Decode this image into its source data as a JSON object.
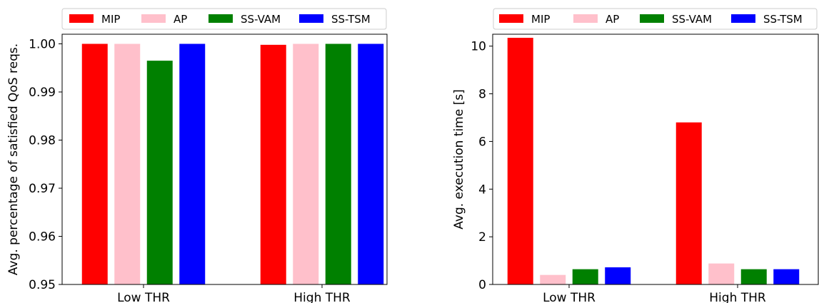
{
  "chart_data": [
    {
      "type": "bar",
      "categories": [
        "Low THR",
        "High THR"
      ],
      "series": [
        {
          "name": "MIP",
          "color": "#ff0000",
          "values": [
            1.0,
            0.9998
          ]
        },
        {
          "name": "AP",
          "color": "#ffc0cb",
          "values": [
            1.0,
            1.0
          ]
        },
        {
          "name": "SS-VAM",
          "color": "#008000",
          "values": [
            0.9965,
            1.0
          ]
        },
        {
          "name": "SS-TSM",
          "color": "#0000ff",
          "values": [
            1.0,
            1.0
          ]
        }
      ],
      "title": "",
      "xlabel": "",
      "ylabel": "Avg. percentage of satisfied QoS reqs.",
      "ylim": [
        0.95,
        1.002
      ],
      "yticks": [
        "0.95",
        "0.96",
        "0.97",
        "0.98",
        "0.99",
        "1.00"
      ],
      "legend": "top",
      "grid": false
    },
    {
      "type": "bar",
      "categories": [
        "Low THR",
        "High THR"
      ],
      "series": [
        {
          "name": "MIP",
          "color": "#ff0000",
          "values": [
            10.35,
            6.8
          ]
        },
        {
          "name": "AP",
          "color": "#ffc0cb",
          "values": [
            0.4,
            0.88
          ]
        },
        {
          "name": "SS-VAM",
          "color": "#008000",
          "values": [
            0.64,
            0.64
          ]
        },
        {
          "name": "SS-TSM",
          "color": "#0000ff",
          "values": [
            0.72,
            0.64
          ]
        }
      ],
      "title": "",
      "xlabel": "",
      "ylabel": "Avg. execution time [s]",
      "ylim": [
        0,
        10.5
      ],
      "yticks": [
        "0",
        "2",
        "4",
        "6",
        "8",
        "10"
      ],
      "legend": "top",
      "grid": false
    }
  ]
}
